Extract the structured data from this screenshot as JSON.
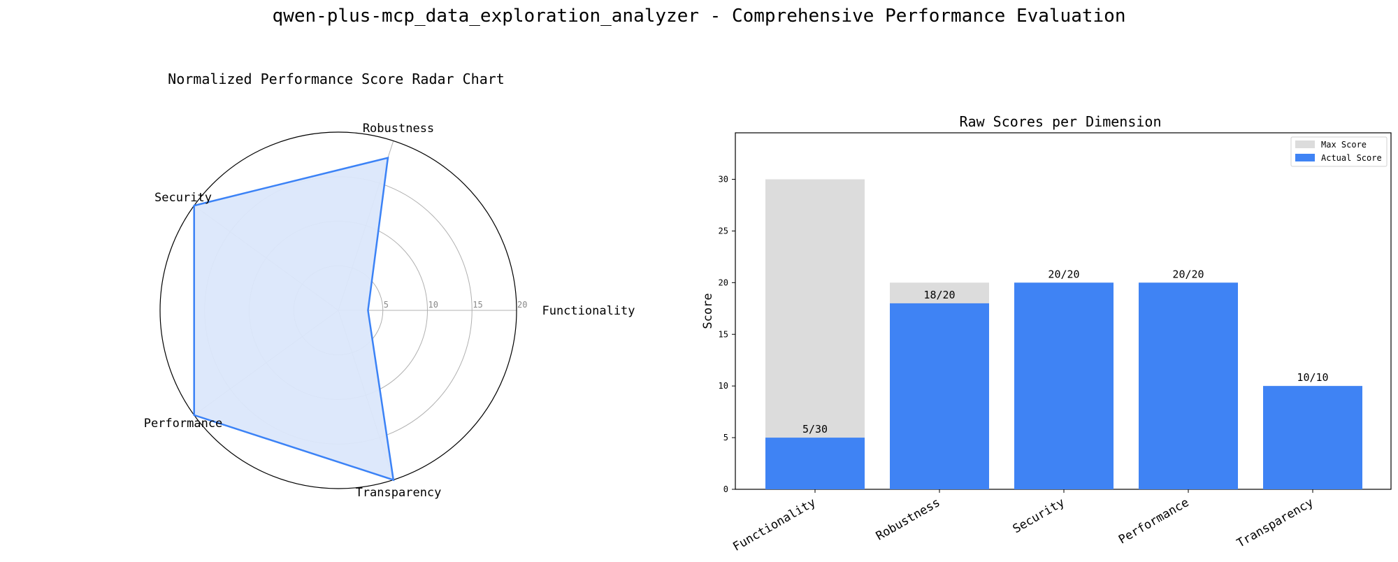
{
  "figure": {
    "title": "qwen-plus-mcp_data_exploration_analyzer - Comprehensive Performance Evaluation"
  },
  "chart_data": [
    {
      "type": "radar",
      "title": "Normalized Performance Score Radar Chart",
      "axes": [
        "Functionality",
        "Robustness",
        "Security",
        "Performance",
        "Transparency"
      ],
      "values": [
        3.33,
        18,
        20,
        20,
        20
      ],
      "rlim": [
        0,
        20
      ],
      "rticks": [
        "5",
        "10",
        "15",
        "20"
      ],
      "grid": true,
      "colors": {
        "line": "#3b82f6",
        "fill": "#dbe7fb"
      }
    },
    {
      "type": "bar",
      "title": "Raw Scores per Dimension",
      "categories": [
        "Functionality",
        "Robustness",
        "Security",
        "Performance",
        "Transparency"
      ],
      "ylabel": "Score",
      "xlabel": "",
      "ylim": [
        0,
        34.5
      ],
      "yticks": [
        "0",
        "5",
        "10",
        "15",
        "20",
        "25",
        "30"
      ],
      "series": [
        {
          "name": "Max Score",
          "values": [
            30,
            20,
            20,
            20,
            10
          ],
          "color": "#dcdcdc"
        },
        {
          "name": "Actual Score",
          "values": [
            5,
            18,
            20,
            20,
            10
          ],
          "color": "#3f83f4"
        }
      ],
      "data_labels": [
        "5/30",
        "18/20",
        "20/20",
        "20/20",
        "10/10"
      ],
      "legend": "top-right",
      "grid": false
    }
  ]
}
